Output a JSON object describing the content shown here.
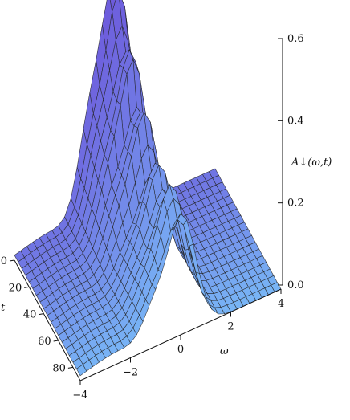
{
  "chart_data": {
    "type": "surface3d",
    "zlabel": "A↓(ω,t)",
    "xlabel": "ω",
    "ylabel": "t",
    "x_range": [
      -4,
      4
    ],
    "t_range": [
      0,
      90
    ],
    "z_range": [
      0.0,
      0.6
    ],
    "x_ticks": [
      "−4",
      "−2",
      "0",
      "2",
      "4"
    ],
    "t_ticks": [
      "0",
      "20",
      "40",
      "60",
      "80"
    ],
    "z_ticks": [
      "0.0",
      "0.2",
      "0.4",
      "0.6"
    ],
    "colors": {
      "surface_far": "#6b47d6",
      "surface_near": "#78b6f6",
      "mesh": "#222222",
      "axis": "#111111"
    },
    "features": {
      "main_peak_omega": 0.0,
      "main_peak_value": 0.58,
      "side_peak_omega": -1.0,
      "side_peak_value_at_t0": 0.2
    }
  }
}
